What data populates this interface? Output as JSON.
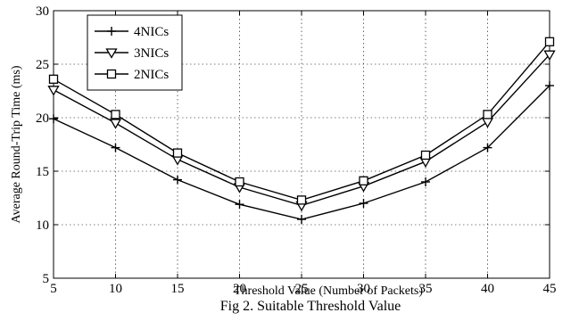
{
  "chart_data": {
    "type": "line",
    "title": "",
    "xlabel": "Threshold Value (Number of Packets)",
    "ylabel": "Average Round-Trip Time (ms)",
    "caption": "Fig 2. Suitable Threshold Value",
    "x": [
      5,
      10,
      15,
      20,
      25,
      30,
      35,
      40,
      45
    ],
    "xlim": [
      5,
      45
    ],
    "ylim": [
      5,
      30
    ],
    "xticks": [
      "5",
      "10",
      "15",
      "20",
      "25",
      "30",
      "35",
      "40",
      "45"
    ],
    "yticks": [
      "5",
      "10",
      "15",
      "20",
      "25",
      "30"
    ],
    "grid": true,
    "legend_position": "top-left",
    "series": [
      {
        "name": "4NICs",
        "marker": "plus",
        "values": [
          19.9,
          17.2,
          14.2,
          11.9,
          10.5,
          12.0,
          14.0,
          17.2,
          23.0
        ]
      },
      {
        "name": "3NICs",
        "marker": "triangle-down",
        "values": [
          22.6,
          19.5,
          16.1,
          13.5,
          11.8,
          13.6,
          15.9,
          19.6,
          25.9
        ]
      },
      {
        "name": "2NICs",
        "marker": "square",
        "values": [
          23.6,
          20.3,
          16.7,
          14.0,
          12.3,
          14.1,
          16.5,
          20.3,
          27.1
        ]
      }
    ]
  }
}
